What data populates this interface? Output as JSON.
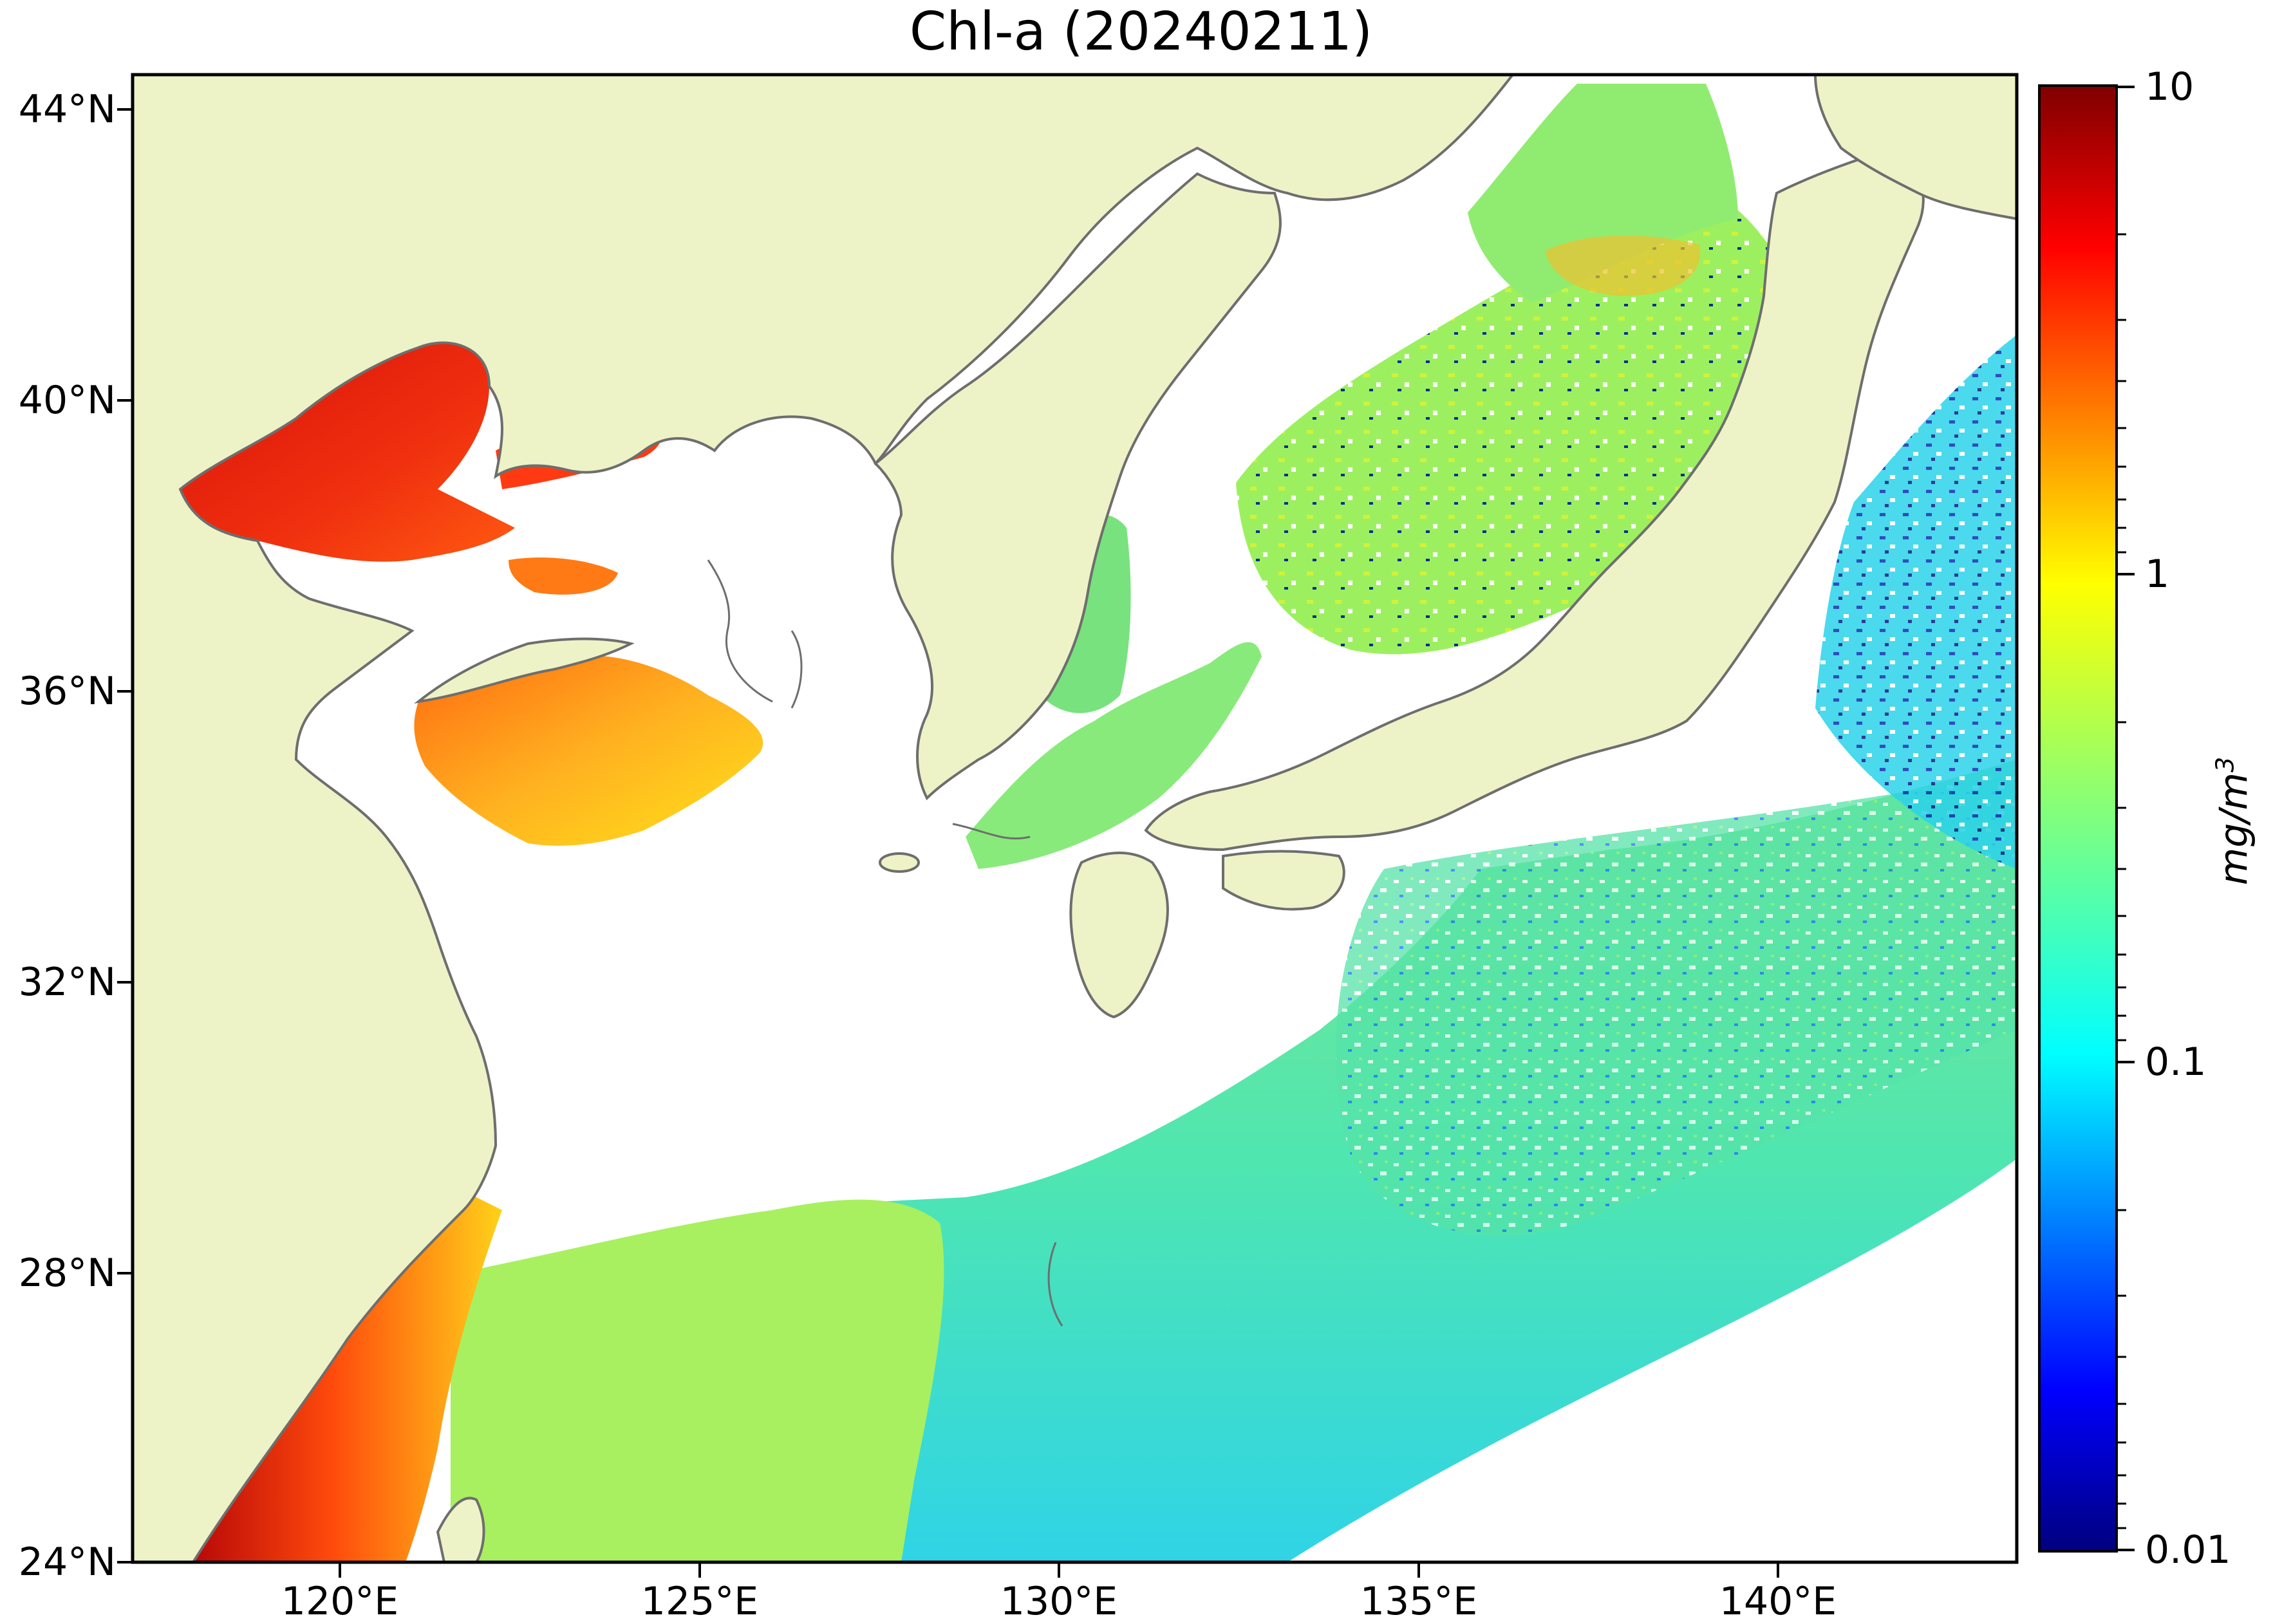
{
  "title": "Chl-a (20240211)",
  "map": {
    "lat_ticks": [
      {
        "value": 44,
        "label": "44°N"
      },
      {
        "value": 40,
        "label": "40°N"
      },
      {
        "value": 36,
        "label": "36°N"
      },
      {
        "value": 32,
        "label": "32°N"
      },
      {
        "value": 28,
        "label": "28°N"
      },
      {
        "value": 24,
        "label": "24°N"
      }
    ],
    "lon_ticks": [
      {
        "value": 120,
        "label": "120°E"
      },
      {
        "value": 125,
        "label": "125°E"
      },
      {
        "value": 130,
        "label": "130°E"
      },
      {
        "value": 135,
        "label": "135°E"
      },
      {
        "value": 140,
        "label": "140°E"
      }
    ],
    "extent": {
      "lon": [
        116.9,
        143.1
      ],
      "lat": [
        24.0,
        44.4
      ]
    },
    "land_color": "#eef3c7",
    "coast_color": "#6e6e6e",
    "no_data_color": "#ffffff"
  },
  "colorbar": {
    "scale": "log",
    "range": [
      0.01,
      10
    ],
    "colormap": "jet",
    "tick_labels": [
      "10",
      "1",
      "0.1",
      "0.01"
    ],
    "unit_base": "mg/m",
    "unit_sup": "3"
  }
}
